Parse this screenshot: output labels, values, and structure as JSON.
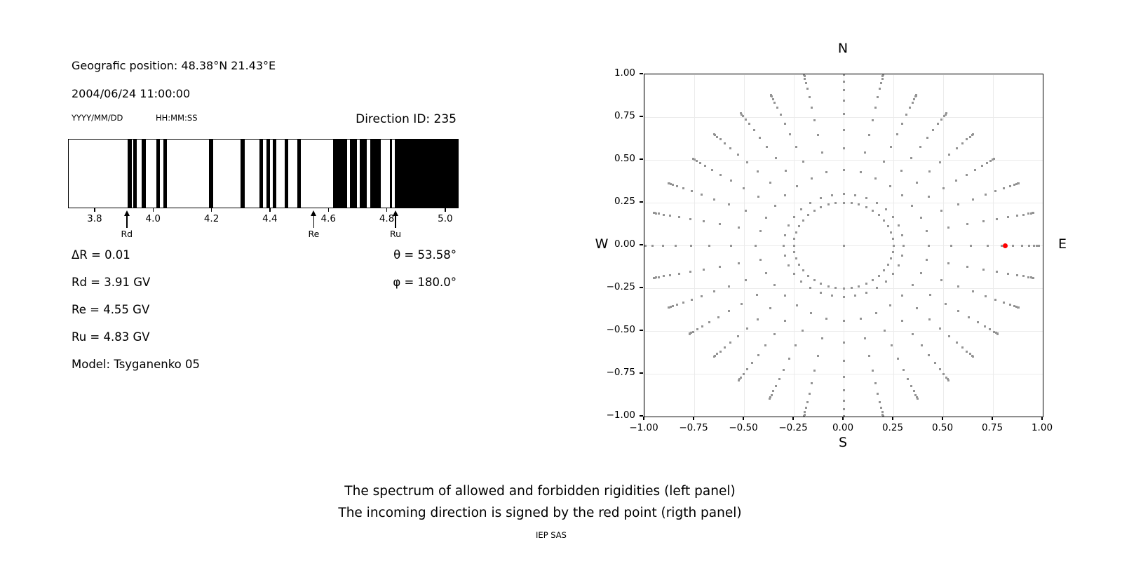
{
  "header": {
    "geographic_position": "Geografic position: 48.38°N 21.43°E",
    "datetime": "2004/06/24 11:00:00",
    "date_format": "YYYY/MM/DD",
    "time_format": "HH:MM:SS",
    "direction_id": "Direction ID: 235"
  },
  "spectrum_info": {
    "delta_r": "ΔR = 0.01",
    "rd": "Rd = 3.91 GV",
    "re": "Re = 4.55 GV",
    "ru": "Ru = 4.83 GV",
    "model": "Model: Tsyganenko 05",
    "theta": "θ = 53.58°",
    "phi": "φ = 180.0°"
  },
  "caption": {
    "line1": "The spectrum of allowed and forbidden rigidities (left panel)",
    "line2": "The incoming direction is signed by the red point (rigth panel)",
    "credit": "IEP SAS"
  },
  "colors": {
    "bar_black": "#000000",
    "dot_gray": "#949494",
    "red_point": "#ff0000",
    "grid": "#ebebeb"
  },
  "chart_data": [
    {
      "type": "bar",
      "panel": "left-rigidity-spectrum",
      "xlim": [
        3.709,
        5.041
      ],
      "xticks": [
        3.8,
        4.0,
        4.2,
        4.4,
        4.6,
        4.8,
        5.0
      ],
      "black_intervals_gv": [
        [
          3.91,
          3.924
        ],
        [
          3.93,
          3.943
        ],
        [
          3.958,
          3.974
        ],
        [
          4.008,
          4.022
        ],
        [
          4.032,
          4.045
        ],
        [
          4.19,
          4.203
        ],
        [
          4.298,
          4.311
        ],
        [
          4.362,
          4.374
        ],
        [
          4.385,
          4.397
        ],
        [
          4.408,
          4.42
        ],
        [
          4.448,
          4.46
        ],
        [
          4.492,
          4.504
        ],
        [
          4.614,
          4.662
        ],
        [
          4.672,
          4.696
        ],
        [
          4.706,
          4.73
        ],
        [
          4.74,
          4.777
        ],
        [
          4.808,
          4.815
        ],
        [
          4.826,
          5.041
        ]
      ],
      "cutoff_arrows": [
        {
          "label": "Rd",
          "x_gv": 3.91
        },
        {
          "label": "Re",
          "x_gv": 4.55
        },
        {
          "label": "Ru",
          "x_gv": 4.83
        }
      ]
    },
    {
      "type": "scatter",
      "panel": "right-incoming-direction",
      "xlim": [
        -1.0,
        1.0
      ],
      "ylim": [
        -1.0,
        1.0
      ],
      "xticks": [
        -1.0,
        -0.75,
        -0.5,
        -0.25,
        0.0,
        0.25,
        0.5,
        0.75,
        1.0
      ],
      "yticks": [
        1.0,
        0.75,
        0.5,
        0.25,
        0.0,
        -0.25,
        -0.5,
        -0.75,
        -1.0
      ],
      "grid": true,
      "compass": {
        "top": "N",
        "bottom": "S",
        "left": "W",
        "right": "E"
      },
      "red_point": {
        "x": 0.81,
        "y": 0.0
      },
      "center_dot": {
        "x": 0.0,
        "y": 0.0
      },
      "inner_ring": {
        "radius": 0.25,
        "num_dots": 40
      },
      "spokes": {
        "count": 32,
        "angle_step_deg": 11.25,
        "start_radius": 0.3,
        "dots_per_spoke": 13,
        "tip_bunching_exponent": 2.4,
        "tip_radii": [
          0.98,
          0.97,
          0.95,
          0.91,
          0.92,
          0.93,
          0.95,
          1.02,
          1.05,
          1.02,
          0.95,
          0.93,
          0.92,
          0.91,
          0.95,
          0.97,
          1.05,
          0.97,
          0.95,
          0.93,
          0.92,
          0.95,
          0.97,
          1.02,
          1.05,
          1.02,
          0.97,
          0.95,
          0.92,
          0.93,
          0.95,
          0.97
        ]
      }
    }
  ]
}
